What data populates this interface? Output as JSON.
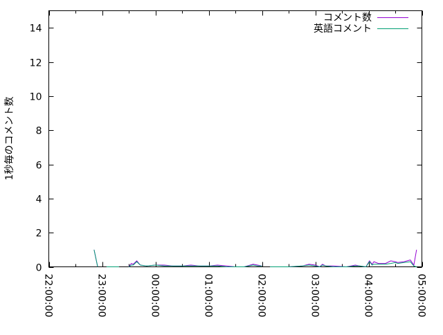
{
  "chart_data": {
    "type": "line",
    "title": "",
    "xlabel": "",
    "ylabel": "1秒毎のコメント数",
    "xlim": [
      "22:00:00",
      "05:00:00"
    ],
    "ylim": [
      0,
      15
    ],
    "x_ticks": [
      "22:00:00",
      "23:00:00",
      "00:00:00",
      "01:00:00",
      "02:00:00",
      "03:00:00",
      "04:00:00",
      "05:00:00"
    ],
    "y_ticks": [
      "0",
      "2",
      "4",
      "6",
      "8",
      "10",
      "12",
      "14"
    ],
    "grid": false,
    "legend": "top-right",
    "series": [
      {
        "name": "コメント数",
        "color": "#9400d3",
        "points": [
          [
            "22:51",
            1
          ],
          [
            "22:55",
            0
          ],
          [
            "23:00",
            null
          ],
          [
            "23:05",
            0
          ],
          [
            "23:19",
            0
          ],
          [
            "23:25",
            null
          ],
          [
            "23:30",
            0
          ],
          [
            "23:33",
            0.2
          ],
          [
            "23:35",
            0.15
          ],
          [
            "23:39",
            0.35
          ],
          [
            "23:43",
            0.1
          ],
          [
            "23:50",
            0.05
          ],
          [
            "00:00",
            0.1
          ],
          [
            "00:10",
            0.1
          ],
          [
            "00:20",
            0.05
          ],
          [
            "00:30",
            0.05
          ],
          [
            "00:40",
            0.1
          ],
          [
            "00:50",
            0.05
          ],
          [
            "01:00",
            0.05
          ],
          [
            "01:10",
            0.1
          ],
          [
            "01:20",
            0.05
          ],
          [
            "01:30",
            0
          ],
          [
            "01:40",
            0
          ],
          [
            "01:50",
            0.15
          ],
          [
            "01:55",
            0.1
          ],
          [
            "02:00",
            0.05
          ],
          [
            "02:04",
            null
          ],
          [
            "02:09",
            0
          ],
          [
            "02:30",
            0
          ],
          [
            "02:45",
            0.05
          ],
          [
            "02:53",
            0.15
          ],
          [
            "03:00",
            0.1
          ],
          [
            "03:05",
            0
          ],
          [
            "03:08",
            0.15
          ],
          [
            "03:12",
            0.05
          ],
          [
            "03:20",
            0.05
          ],
          [
            "03:35",
            0
          ],
          [
            "03:45",
            0.1
          ],
          [
            "03:50",
            0.05
          ],
          [
            "03:57",
            0
          ],
          [
            "04:01",
            0.35
          ],
          [
            "04:04",
            0.15
          ],
          [
            "04:06",
            0.3
          ],
          [
            "04:11",
            0.2
          ],
          [
            "04:19",
            0.2
          ],
          [
            "04:25",
            0.35
          ],
          [
            "04:30",
            0.3
          ],
          [
            "04:33",
            0.25
          ],
          [
            "04:40",
            0.3
          ],
          [
            "04:47",
            0.4
          ],
          [
            "04:51",
            0.1
          ],
          [
            "04:54",
            1
          ]
        ]
      },
      {
        "name": "英語コメント",
        "color": "#009e73",
        "points": [
          [
            "22:51",
            1
          ],
          [
            "22:55",
            0
          ],
          [
            "23:00",
            null
          ],
          [
            "23:05",
            0
          ],
          [
            "23:19",
            0
          ],
          [
            "23:25",
            null
          ],
          [
            "23:30",
            0
          ],
          [
            "23:33",
            0.1
          ],
          [
            "23:35",
            0.1
          ],
          [
            "23:39",
            0.3
          ],
          [
            "23:43",
            0.1
          ],
          [
            "23:50",
            0.05
          ],
          [
            "00:00",
            0.1
          ],
          [
            "00:10",
            0.05
          ],
          [
            "00:20",
            0.05
          ],
          [
            "00:30",
            0.05
          ],
          [
            "00:40",
            0.05
          ],
          [
            "00:50",
            0.05
          ],
          [
            "01:00",
            0.05
          ],
          [
            "01:10",
            0.05
          ],
          [
            "01:20",
            0
          ],
          [
            "01:30",
            0
          ],
          [
            "01:40",
            0
          ],
          [
            "01:50",
            0.1
          ],
          [
            "01:55",
            0.05
          ],
          [
            "02:00",
            0.05
          ],
          [
            "02:04",
            null
          ],
          [
            "02:09",
            0
          ],
          [
            "02:30",
            0
          ],
          [
            "02:45",
            0.05
          ],
          [
            "02:53",
            0.1
          ],
          [
            "03:00",
            0.05
          ],
          [
            "03:05",
            0
          ],
          [
            "03:08",
            0.1
          ],
          [
            "03:12",
            0.05
          ],
          [
            "03:20",
            0
          ],
          [
            "03:35",
            0
          ],
          [
            "03:45",
            0.05
          ],
          [
            "03:50",
            0.05
          ],
          [
            "03:57",
            0
          ],
          [
            "04:01",
            0.3
          ],
          [
            "04:04",
            0.1
          ],
          [
            "04:06",
            0.15
          ],
          [
            "04:11",
            0.15
          ],
          [
            "04:19",
            0.15
          ],
          [
            "04:25",
            0.2
          ],
          [
            "04:30",
            0.25
          ],
          [
            "04:33",
            0.2
          ],
          [
            "04:40",
            0.25
          ],
          [
            "04:47",
            0.3
          ],
          [
            "04:51",
            0.05
          ],
          [
            "04:54",
            0
          ]
        ]
      }
    ]
  }
}
